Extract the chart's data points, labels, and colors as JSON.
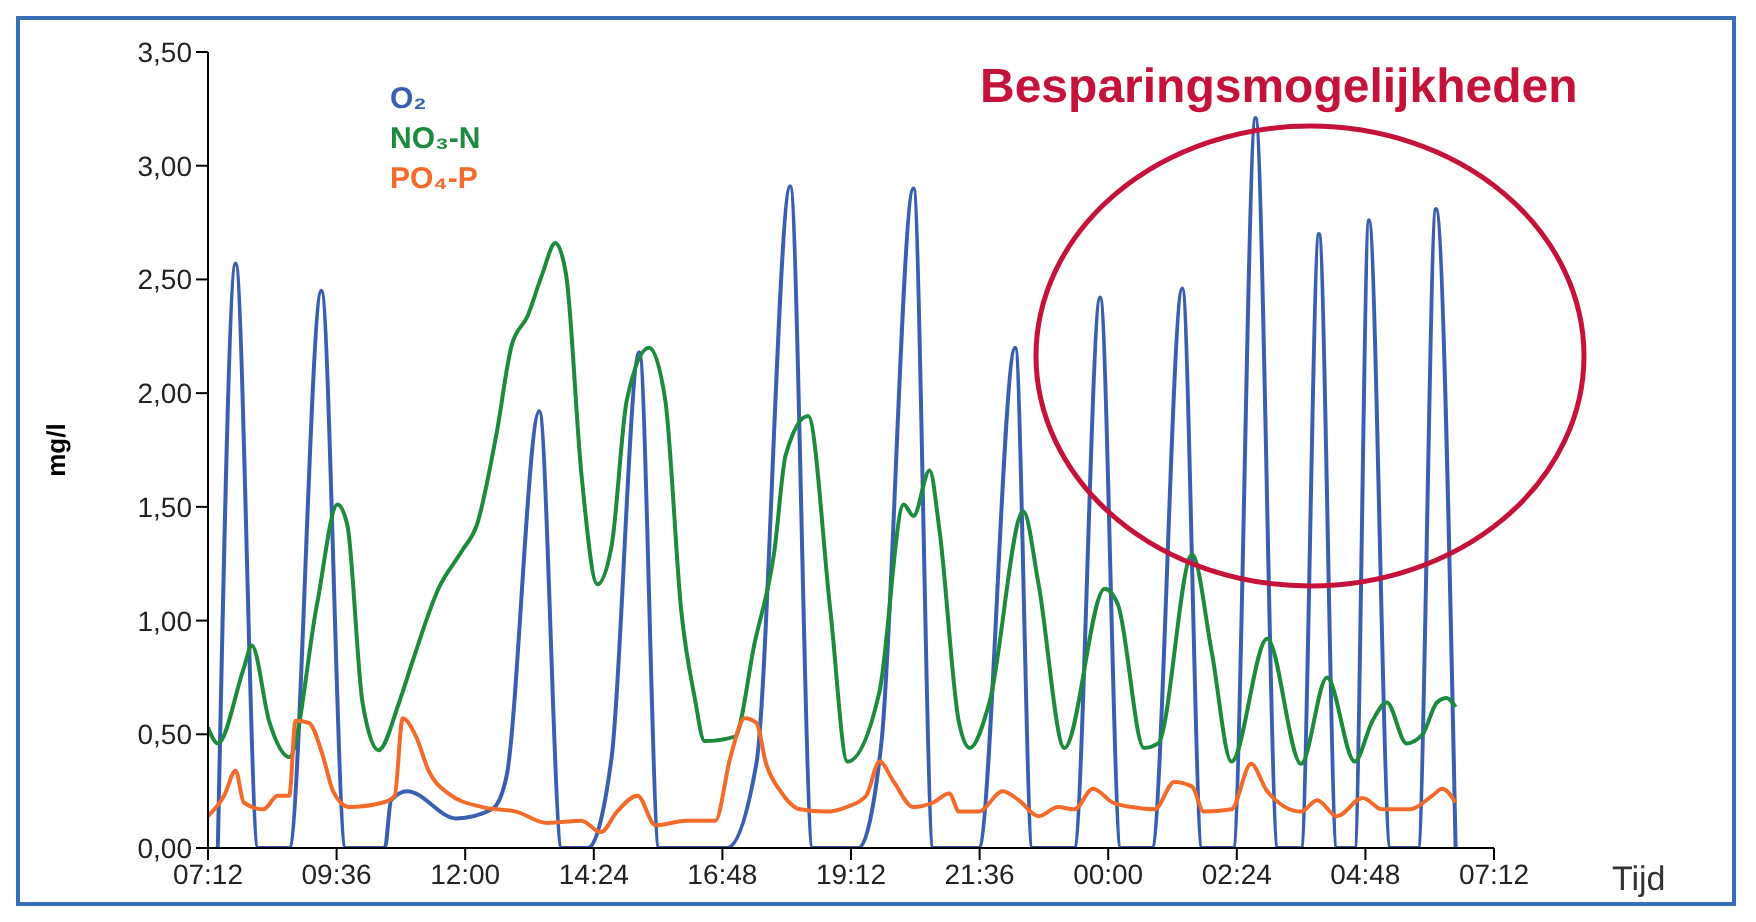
{
  "chart_data": {
    "type": "line",
    "xlabel": "Tijd",
    "ylabel": "mg/l",
    "annotations": [
      "Besparingsmogelijkheden"
    ],
    "legend": "top left",
    "xlim": [
      "--01-01T07:12",
      "--01-02T07:12"
    ],
    "xticks": [
      {
        "value": "--01-01T07:12",
        "label": "07:12"
      },
      {
        "value": "--01-01T09:36",
        "label": "09:36"
      },
      {
        "value": "--01-01T12:00",
        "label": "12:00"
      },
      {
        "value": "--01-01T14:24",
        "label": "14:24"
      },
      {
        "value": "--01-01T16:48",
        "label": "16:48"
      },
      {
        "value": "--01-01T19:12",
        "label": "19:12"
      },
      {
        "value": "--01-01T21:36",
        "label": "21:36"
      },
      {
        "value": "--01-02T00:00",
        "label": "00:00"
      },
      {
        "value": "--01-02T02:24",
        "label": "02:24"
      },
      {
        "value": "--01-02T04:48",
        "label": "04:48"
      },
      {
        "value": "--01-02T07:12",
        "label": "07:12"
      }
    ],
    "ylim": [
      0,
      3.5
    ],
    "yticks": [
      {
        "value": 0,
        "label": "0,00"
      },
      {
        "value": 0.5,
        "label": "0,50"
      },
      {
        "value": 1,
        "label": "1,00"
      },
      {
        "value": 1.5,
        "label": "1,50"
      },
      {
        "value": 2,
        "label": "2,00"
      },
      {
        "value": 2.5,
        "label": "2,50"
      },
      {
        "value": 3,
        "label": "3,00"
      },
      {
        "value": 3.5,
        "label": "3,50"
      }
    ],
    "series": [
      {
        "name": "O₂",
        "color": "#3a5fb0",
        "x": [
          "--01-01T07:23",
          "--01-01T07:43",
          "--01-01T08:08",
          "--01-01T08:43",
          "--01-01T09:19",
          "--01-01T09:46",
          "--01-01T10:30",
          "--01-01T10:37",
          "--01-01T10:55",
          "--01-01T11:50",
          "--01-01T12:30",
          "--01-01T12:46",
          "--01-01T13:23",
          "--01-01T13:48",
          "--01-01T14:17",
          "--01-01T14:44",
          "--01-01T15:15",
          "--01-01T15:37",
          "--01-01T16:53",
          "--01-01T17:26",
          "--01-01T18:04",
          "--01-01T18:29",
          "--01-01T19:20",
          "--01-01T19:46",
          "--01-01T20:22",
          "--01-01T20:44",
          "--01-01T21:35",
          "--01-01T22:16",
          "--01-01T22:35",
          "--01-01T23:22",
          "--01-01T23:51",
          "--01-02T00:14",
          "--01-02T00:49",
          "--01-02T01:23",
          "--01-02T01:45",
          "--01-02T02:20",
          "--01-02T02:45",
          "--01-02T03:10",
          "--01-02T03:36",
          "--01-02T03:56",
          "--01-02T04:16",
          "--01-02T04:36",
          "--01-02T04:52",
          "--01-02T05:16",
          "--01-02T05:47",
          "--01-02T06:07",
          "--01-02T06:29"
        ],
        "values": [
          0,
          2.57,
          0,
          0,
          2.45,
          0,
          0,
          0.21,
          0.25,
          0.13,
          0.17,
          0.31,
          1.92,
          0,
          0,
          0.4,
          2.18,
          0,
          0,
          0.37,
          2.91,
          0,
          0,
          0.46,
          2.9,
          0,
          0,
          2.2,
          0,
          0,
          2.42,
          0,
          0,
          2.46,
          0,
          0,
          3.21,
          0,
          0,
          2.7,
          0,
          0,
          2.76,
          0,
          0,
          2.81,
          0
        ]
      },
      {
        "name": "NO₃-N",
        "color": "#1e8a3e",
        "x": [
          "--01-01T07:12",
          "--01-01T07:23",
          "--01-01T07:52",
          "--01-01T08:01",
          "--01-01T08:21",
          "--01-01T08:43",
          "--01-01T09:14",
          "--01-01T09:37",
          "--01-01T09:48",
          "--01-01T10:05",
          "--01-01T10:23",
          "--01-01T10:46",
          "--01-01T11:01",
          "--01-01T11:30",
          "--01-01T11:57",
          "--01-01T12:13",
          "--01-01T12:35",
          "--01-01T12:52",
          "--01-01T13:10",
          "--01-01T13:26",
          "--01-01T13:41",
          "--01-01T13:53",
          "--01-01T14:10",
          "--01-01T14:28",
          "--01-01T14:44",
          "--01-01T15:01",
          "--01-01T15:26",
          "--01-01T15:44",
          "--01-01T16:02",
          "--01-01T16:17",
          "--01-01T16:28",
          "--01-01T17:02",
          "--01-01T17:24",
          "--01-01T17:46",
          "--01-01T17:59",
          "--01-01T18:24",
          "--01-01T18:49",
          "--01-01T19:08",
          "--01-01T19:44",
          "--01-01T20:11",
          "--01-01T20:22",
          "--01-01T20:40",
          "--01-01T20:51",
          "--01-01T21:13",
          "--01-01T21:25",
          "--01-01T21:47",
          "--01-01T22:25",
          "--01-01T22:42",
          "--01-01T23:11",
          "--01-01T23:56",
          "--01-02T00:11",
          "--01-02T00:40",
          "--01-02T00:56",
          "--01-02T01:34",
          "--01-02T01:56",
          "--01-02T02:18",
          "--01-02T02:58",
          "--01-02T03:36",
          "--01-02T04:05",
          "--01-02T04:36",
          "--01-02T04:56",
          "--01-02T05:12",
          "--01-02T05:34",
          "--01-02T05:52",
          "--01-02T06:08",
          "--01-02T06:19",
          "--01-02T06:29"
        ],
        "values": [
          0.53,
          0.46,
          0.79,
          0.89,
          0.55,
          0.4,
          1.07,
          1.51,
          1.42,
          0.64,
          0.43,
          0.64,
          0.82,
          1.14,
          1.31,
          1.42,
          1.82,
          2.21,
          2.34,
          2.52,
          2.66,
          2.52,
          1.65,
          1.16,
          1.33,
          1.97,
          2.2,
          1.97,
          1.04,
          0.66,
          0.47,
          0.49,
          0.9,
          1.3,
          1.73,
          1.9,
          1.04,
          0.38,
          0.69,
          1.51,
          1.46,
          1.66,
          1.4,
          0.55,
          0.44,
          0.64,
          1.48,
          1.16,
          0.44,
          1.14,
          1.07,
          0.44,
          0.46,
          1.29,
          0.86,
          0.38,
          0.92,
          0.37,
          0.75,
          0.38,
          0.56,
          0.64,
          0.46,
          0.5,
          0.64,
          0.66,
          0.62
        ]
      },
      {
        "name": "PO₄-P",
        "color": "#f26b2a",
        "x": [
          "--01-01T07:12",
          "--01-01T07:30",
          "--01-01T07:43",
          "--01-01T07:52",
          "--01-01T08:14",
          "--01-01T08:30",
          "--01-01T08:43",
          "--01-01T08:50",
          "--01-01T09:05",
          "--01-01T09:21",
          "--01-01T09:32",
          "--01-01T09:50",
          "--01-01T10:28",
          "--01-01T10:41",
          "--01-01T10:50",
          "--01-01T11:05",
          "--01-01T11:19",
          "--01-01T11:41",
          "--01-01T12:19",
          "--01-01T12:57",
          "--01-01T13:32",
          "--01-01T14:10",
          "--01-01T14:32",
          "--01-01T14:50",
          "--01-01T15:13",
          "--01-01T15:33",
          "--01-01T16:08",
          "--01-01T16:40",
          "--01-01T16:57",
          "--01-01T17:13",
          "--01-01T17:26",
          "--01-01T17:37",
          "--01-01T17:53",
          "--01-01T18:15",
          "--01-01T18:44",
          "--01-01T19:07",
          "--01-01T19:29",
          "--01-01T19:44",
          "--01-01T20:00",
          "--01-01T20:22",
          "--01-01T20:44",
          "--01-01T21:02",
          "--01-01T21:13",
          "--01-01T21:35",
          "--01-01T22:02",
          "--01-01T22:20",
          "--01-01T22:42",
          "--01-01T23:04",
          "--01-01T23:22",
          "--01-01T23:43",
          "--01-02T00:05",
          "--01-02T00:27",
          "--01-02T00:52",
          "--01-02T01:14",
          "--01-02T01:34",
          "--01-02T01:47",
          "--01-02T02:18",
          "--01-02T02:40",
          "--01-02T02:58",
          "--01-02T03:36",
          "--01-02T03:54",
          "--01-02T04:16",
          "--01-02T04:45",
          "--01-02T05:07",
          "--01-02T05:38",
          "--01-02T06:03",
          "--01-02T06:14",
          "--01-02T06:29"
        ],
        "values": [
          0.14,
          0.23,
          0.34,
          0.2,
          0.17,
          0.23,
          0.23,
          0.56,
          0.55,
          0.4,
          0.25,
          0.18,
          0.2,
          0.23,
          0.57,
          0.49,
          0.34,
          0.24,
          0.18,
          0.16,
          0.11,
          0.12,
          0.07,
          0.16,
          0.23,
          0.1,
          0.12,
          0.12,
          0.4,
          0.57,
          0.55,
          0.37,
          0.25,
          0.17,
          0.16,
          0.18,
          0.23,
          0.38,
          0.29,
          0.18,
          0.2,
          0.24,
          0.16,
          0.16,
          0.25,
          0.21,
          0.14,
          0.18,
          0.17,
          0.26,
          0.2,
          0.18,
          0.17,
          0.29,
          0.27,
          0.16,
          0.17,
          0.37,
          0.25,
          0.16,
          0.21,
          0.14,
          0.22,
          0.17,
          0.17,
          0.23,
          0.26,
          0.2
        ]
      }
    ]
  }
}
